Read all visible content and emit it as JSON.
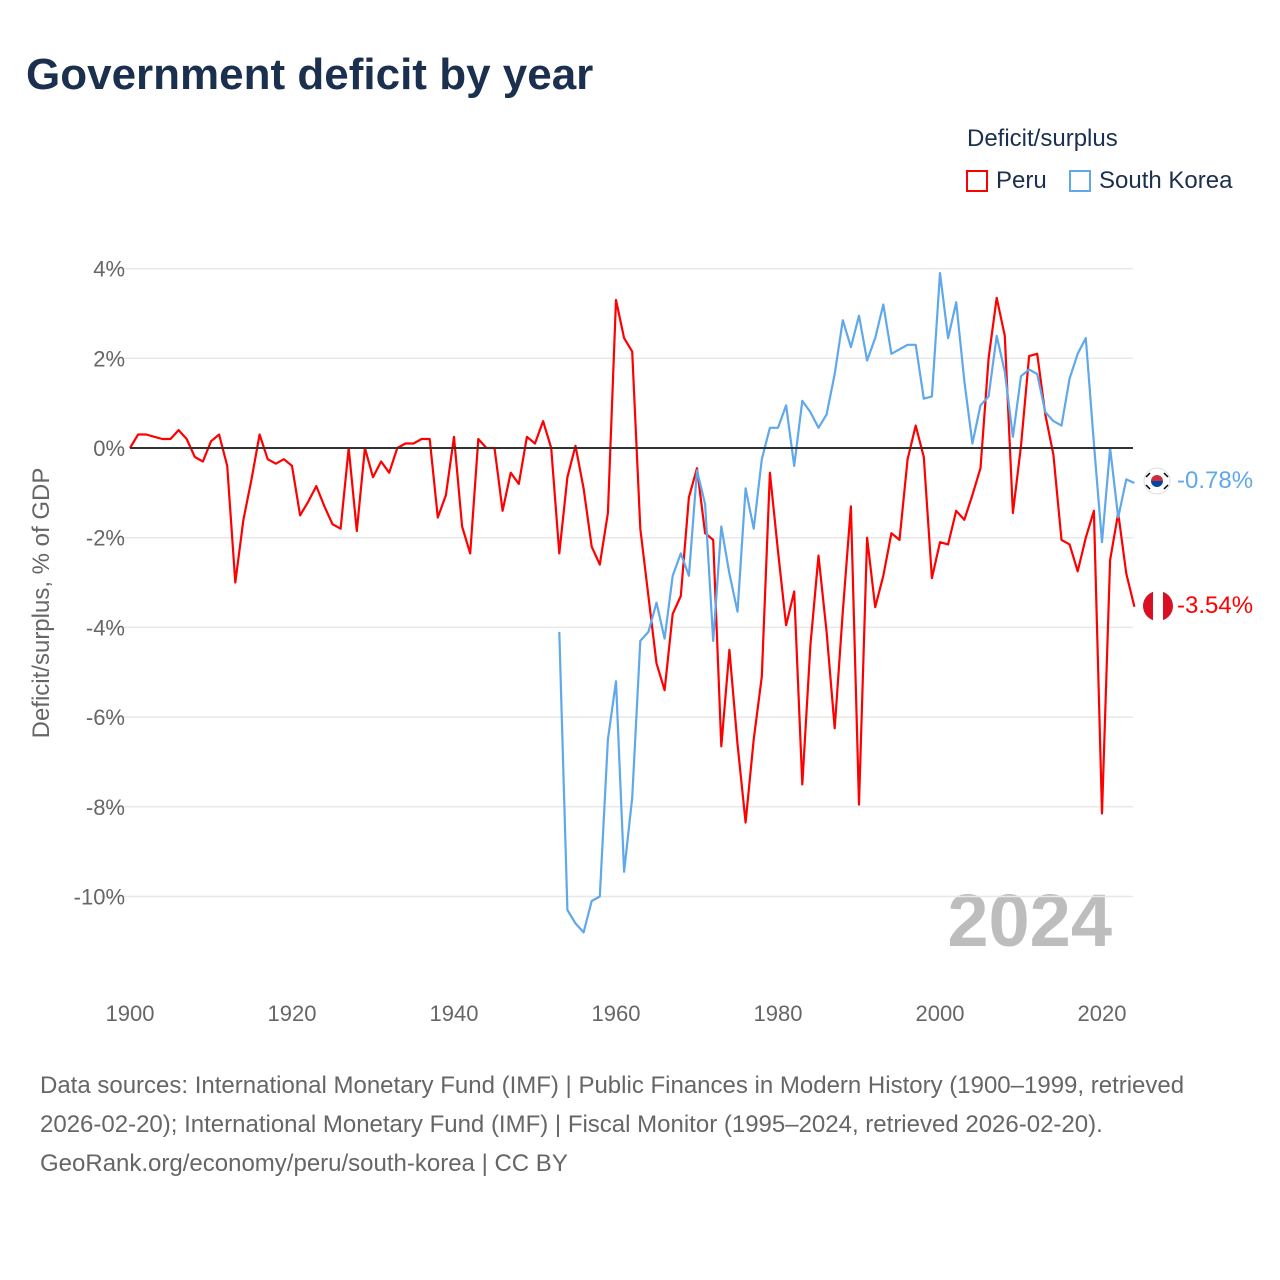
{
  "title": "Government deficit by year",
  "legend": {
    "title": "Deficit/surplus",
    "items": [
      {
        "name": "Peru",
        "color": "#ff0000"
      },
      {
        "name": "South Korea",
        "color": "#5fa8ec"
      }
    ]
  },
  "year_watermark": "2024",
  "end_labels": {
    "south_korea": "-0.78%",
    "peru": "-3.54%"
  },
  "footer": {
    "sources": "Data sources: International Monetary Fund (IMF) | Public Finances in Modern History (1900–1999, retrieved 2026-02-20); International Monetary Fund (IMF) | Fiscal Monitor (1995–2024, retrieved 2026-02-20).",
    "credit": "GeoRank.org/economy/peru/south-korea | CC BY"
  },
  "chart_data": {
    "type": "line",
    "title": "Government deficit by year",
    "xlabel": "",
    "ylabel": "Deficit/surplus, % of GDP",
    "xlim": [
      1900,
      2024
    ],
    "ylim": [
      -12,
      4.5
    ],
    "x_ticks": [
      1900,
      1920,
      1940,
      1960,
      1980,
      2000,
      2020
    ],
    "x_tick_labels": [
      "1900",
      "1920",
      "1940",
      "1960",
      "1980",
      "2000",
      "2020"
    ],
    "y_ticks": [
      4,
      2,
      0,
      -2,
      -4,
      -6,
      -8,
      -10
    ],
    "y_tick_labels": [
      "4%",
      "2%",
      "0%",
      "-2%",
      "-4%",
      "-6%",
      "-8%",
      "-10%"
    ],
    "grid": true,
    "legend_position": "top-right",
    "series": [
      {
        "name": "Peru",
        "color": "#ff0000",
        "start_year": 1900,
        "values": [
          0,
          0.3,
          0.3,
          0.25,
          0.2,
          0.2,
          0.4,
          0.2,
          -0.2,
          -0.3,
          0.15,
          0.3,
          -0.4,
          -3.0,
          -1.6,
          -0.7,
          0.3,
          -0.25,
          -0.35,
          -0.25,
          -0.4,
          -1.5,
          -1.2,
          -0.85,
          -1.3,
          -1.7,
          -1.8,
          0,
          -1.85,
          0,
          -0.65,
          -0.3,
          -0.55,
          0,
          0.1,
          0.1,
          0.2,
          0.2,
          -1.55,
          -1.05,
          0.25,
          -1.75,
          -2.35,
          0.2,
          0,
          0,
          -1.4,
          -0.55,
          -0.8,
          0.25,
          0.1,
          0.6,
          0,
          -2.35,
          -0.65,
          0.05,
          -0.9,
          -2.2,
          -2.6,
          -1.45,
          3.3,
          2.45,
          2.15,
          -1.8,
          -3.3,
          -4.8,
          -5.4,
          -3.7,
          -3.3,
          -1.1,
          -0.45,
          -1.9,
          -2.05,
          -6.65,
          -4.5,
          -6.6,
          -8.35,
          -6.5,
          -5.1,
          -0.55,
          -2.3,
          -3.95,
          -3.2,
          -7.5,
          -4.4,
          -2.4,
          -4.1,
          -6.25,
          -3.65,
          -1.3,
          -7.95,
          -2.0,
          -3.55,
          -2.85,
          -1.9,
          -2.05,
          -0.25,
          0.5,
          -0.2,
          -2.9,
          -2.1,
          -2.15,
          -1.4,
          -1.6,
          -1.05,
          -0.45,
          2.0,
          3.35,
          2.5,
          -1.45,
          0.05,
          2.05,
          2.1,
          0.75,
          -0.15,
          -2.05,
          -2.15,
          -2.75,
          -2.0,
          -1.4,
          -8.15,
          -2.5,
          -1.45,
          -2.8,
          -3.54
        ]
      },
      {
        "name": "South Korea",
        "color": "#5fa8ec",
        "start_year": 1953,
        "values": [
          -4.1,
          -10.3,
          -10.6,
          -10.8,
          -10.1,
          -10.0,
          -6.5,
          -5.2,
          -9.45,
          -7.8,
          -4.3,
          -4.1,
          -3.45,
          -4.25,
          -2.85,
          -2.35,
          -2.85,
          -0.5,
          -1.25,
          -4.3,
          -1.75,
          -2.8,
          -3.65,
          -0.9,
          -1.8,
          -0.25,
          0.45,
          0.45,
          0.95,
          -0.4,
          1.05,
          0.8,
          0.45,
          0.75,
          1.65,
          2.85,
          2.25,
          2.95,
          1.95,
          2.45,
          3.2,
          2.1,
          2.2,
          2.3,
          2.3,
          1.1,
          1.15,
          3.9,
          2.45,
          3.25,
          1.5,
          0.1,
          0.95,
          1.15,
          2.5,
          1.7,
          0.25,
          1.6,
          1.75,
          1.65,
          0.8,
          0.6,
          0.5,
          1.55,
          2.1,
          2.45,
          0.1,
          -2.1,
          0,
          -1.55,
          -0.7,
          -0.78
        ]
      }
    ]
  }
}
